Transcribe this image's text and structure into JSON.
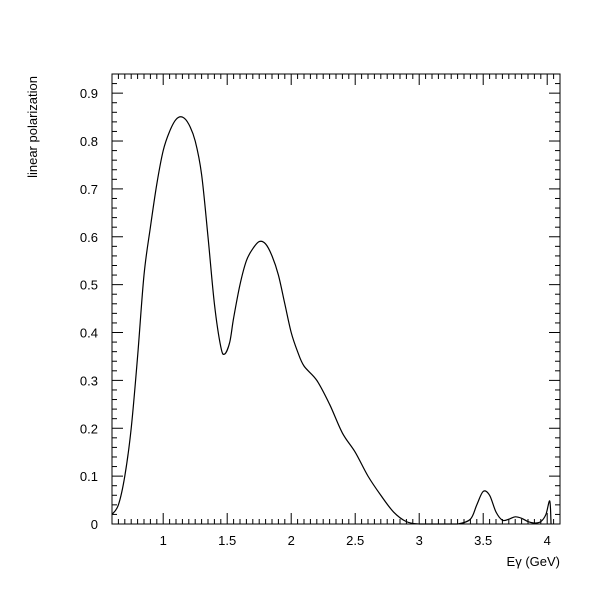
{
  "chart_data": {
    "type": "line",
    "title": "",
    "xlabel": "Eγ (GeV)",
    "ylabel": "linear polarization",
    "xlim": [
      0.6,
      4.1
    ],
    "ylim": [
      0,
      0.94
    ],
    "grid": false,
    "legend": "none",
    "line_color": "#000000",
    "frame_color": "#000000",
    "x_ticks": [
      {
        "value": 1,
        "label": "1"
      },
      {
        "value": 1.5,
        "label": "1.5"
      },
      {
        "value": 2,
        "label": "2"
      },
      {
        "value": 2.5,
        "label": "2.5"
      },
      {
        "value": 3,
        "label": "3"
      },
      {
        "value": 3.5,
        "label": "3.5"
      },
      {
        "value": 4,
        "label": "4"
      }
    ],
    "y_ticks": [
      {
        "value": 0,
        "label": "0"
      },
      {
        "value": 0.1,
        "label": "0.1"
      },
      {
        "value": 0.2,
        "label": "0.2"
      },
      {
        "value": 0.3,
        "label": "0.3"
      },
      {
        "value": 0.4,
        "label": "0.4"
      },
      {
        "value": 0.5,
        "label": "0.5"
      },
      {
        "value": 0.6,
        "label": "0.6"
      },
      {
        "value": 0.7,
        "label": "0.7"
      },
      {
        "value": 0.8,
        "label": "0.8"
      },
      {
        "value": 0.9,
        "label": "0.9"
      }
    ],
    "series": [
      {
        "x": [
          0.6,
          0.65,
          0.7,
          0.75,
          0.8,
          0.85,
          0.9,
          0.95,
          1.0,
          1.05,
          1.1,
          1.15,
          1.2,
          1.25,
          1.3,
          1.35,
          1.4,
          1.45,
          1.48,
          1.52,
          1.55,
          1.6,
          1.65,
          1.7,
          1.75,
          1.8,
          1.85,
          1.9,
          1.95,
          2.0,
          2.05,
          2.1,
          2.2,
          2.3,
          2.4,
          2.5,
          2.6,
          2.7,
          2.8,
          2.9,
          3.0,
          3.1,
          3.2,
          3.3,
          3.4,
          3.45,
          3.5,
          3.55,
          3.6,
          3.65,
          3.7,
          3.75,
          3.8,
          3.85,
          3.9,
          3.95,
          3.99,
          4.02,
          4.03
        ],
        "y": [
          0.02,
          0.04,
          0.1,
          0.2,
          0.35,
          0.52,
          0.62,
          0.71,
          0.78,
          0.82,
          0.845,
          0.85,
          0.835,
          0.8,
          0.73,
          0.6,
          0.46,
          0.37,
          0.355,
          0.38,
          0.43,
          0.5,
          0.55,
          0.575,
          0.59,
          0.585,
          0.56,
          0.52,
          0.46,
          0.4,
          0.36,
          0.33,
          0.3,
          0.25,
          0.19,
          0.15,
          0.1,
          0.06,
          0.025,
          0.005,
          0.0,
          0.0,
          0.0,
          0.0,
          0.01,
          0.04,
          0.068,
          0.06,
          0.025,
          0.008,
          0.01,
          0.015,
          0.012,
          0.005,
          0.002,
          0.005,
          0.02,
          0.048,
          0.0
        ]
      }
    ]
  }
}
